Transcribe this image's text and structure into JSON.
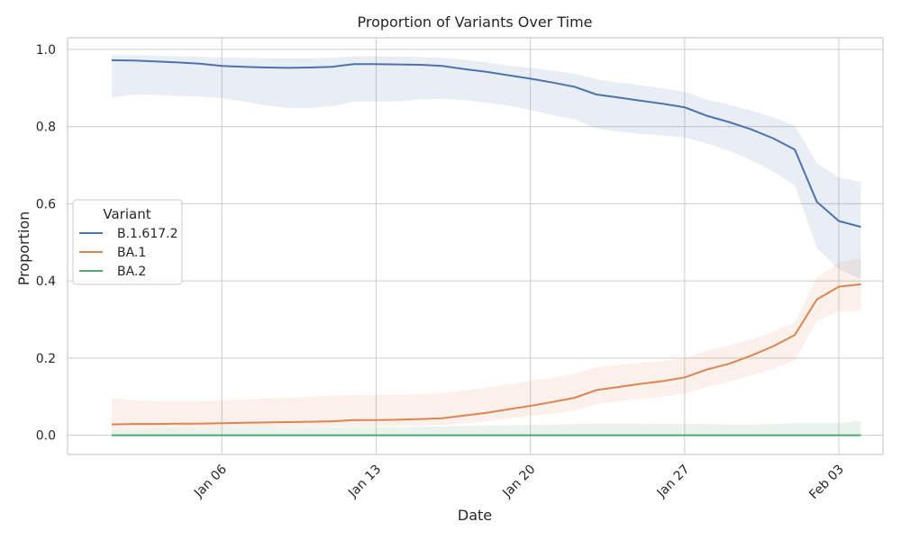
{
  "chart_data": {
    "type": "line",
    "title": "Proportion of Variants Over Time",
    "xlabel": "Date",
    "ylabel": "Proportion",
    "x_tick_labels": [
      {
        "date": "2022-01-06",
        "label": "Jan 06"
      },
      {
        "date": "2022-01-13",
        "label": "Jan 13"
      },
      {
        "date": "2022-01-20",
        "label": "Jan 20"
      },
      {
        "date": "2022-01-27",
        "label": "Jan 27"
      },
      {
        "date": "2022-02-03",
        "label": "Feb 03"
      }
    ],
    "y_tick_labels": [
      "0.0",
      "0.2",
      "0.4",
      "0.6",
      "0.8",
      "1.0"
    ],
    "x_range": [
      "2021-12-30",
      "2022-02-05"
    ],
    "ylim": [
      -0.05,
      1.03
    ],
    "grid": true,
    "legend": {
      "title": "Variant",
      "placement": "center-left"
    },
    "x": [
      "2022-01-01",
      "2022-01-02",
      "2022-01-03",
      "2022-01-04",
      "2022-01-05",
      "2022-01-06",
      "2022-01-07",
      "2022-01-08",
      "2022-01-09",
      "2022-01-10",
      "2022-01-11",
      "2022-01-12",
      "2022-01-13",
      "2022-01-14",
      "2022-01-15",
      "2022-01-16",
      "2022-01-17",
      "2022-01-18",
      "2022-01-19",
      "2022-01-20",
      "2022-01-21",
      "2022-01-22",
      "2022-01-23",
      "2022-01-24",
      "2022-01-25",
      "2022-01-26",
      "2022-01-27",
      "2022-01-28",
      "2022-01-29",
      "2022-01-30",
      "2022-01-31",
      "2022-02-01",
      "2022-02-02",
      "2022-02-03",
      "2022-02-04"
    ],
    "series": [
      {
        "name": "B.1.617.2",
        "color": "#4c72b0",
        "values": [
          0.972,
          0.971,
          0.969,
          0.966,
          0.963,
          0.957,
          0.955,
          0.953,
          0.952,
          0.953,
          0.955,
          0.962,
          0.962,
          0.961,
          0.96,
          0.957,
          0.949,
          0.942,
          0.933,
          0.924,
          0.914,
          0.903,
          0.883,
          0.875,
          0.867,
          0.859,
          0.85,
          0.828,
          0.812,
          0.793,
          0.77,
          0.74,
          0.605,
          0.555,
          0.54
        ],
        "ci_low": [
          0.875,
          0.883,
          0.882,
          0.879,
          0.878,
          0.873,
          0.865,
          0.855,
          0.848,
          0.848,
          0.852,
          0.865,
          0.865,
          0.865,
          0.87,
          0.872,
          0.868,
          0.862,
          0.854,
          0.843,
          0.83,
          0.818,
          0.795,
          0.787,
          0.781,
          0.776,
          0.772,
          0.756,
          0.738,
          0.713,
          0.684,
          0.647,
          0.485,
          0.43,
          0.405
        ],
        "ci_high": [
          0.985,
          0.985,
          0.984,
          0.982,
          0.981,
          0.979,
          0.978,
          0.977,
          0.977,
          0.977,
          0.978,
          0.982,
          0.982,
          0.981,
          0.98,
          0.978,
          0.973,
          0.966,
          0.958,
          0.952,
          0.945,
          0.937,
          0.923,
          0.914,
          0.907,
          0.899,
          0.89,
          0.87,
          0.857,
          0.842,
          0.824,
          0.802,
          0.705,
          0.668,
          0.656
        ]
      },
      {
        "name": "BA.1",
        "color": "#dd8452",
        "values": [
          0.028,
          0.029,
          0.029,
          0.03,
          0.03,
          0.031,
          0.032,
          0.033,
          0.034,
          0.035,
          0.036,
          0.039,
          0.039,
          0.04,
          0.042,
          0.044,
          0.051,
          0.058,
          0.067,
          0.076,
          0.086,
          0.097,
          0.117,
          0.125,
          0.133,
          0.14,
          0.15,
          0.17,
          0.185,
          0.206,
          0.23,
          0.26,
          0.352,
          0.385,
          0.391
        ],
        "ci_low": [
          0.014,
          0.015,
          0.015,
          0.016,
          0.017,
          0.018,
          0.018,
          0.019,
          0.02,
          0.021,
          0.022,
          0.023,
          0.023,
          0.024,
          0.025,
          0.026,
          0.03,
          0.036,
          0.043,
          0.05,
          0.056,
          0.064,
          0.08,
          0.088,
          0.095,
          0.1,
          0.108,
          0.125,
          0.138,
          0.154,
          0.172,
          0.193,
          0.295,
          0.322,
          0.322
        ],
        "ci_high": [
          0.097,
          0.09,
          0.088,
          0.087,
          0.088,
          0.091,
          0.093,
          0.095,
          0.097,
          0.1,
          0.103,
          0.104,
          0.104,
          0.105,
          0.106,
          0.109,
          0.116,
          0.123,
          0.132,
          0.14,
          0.149,
          0.159,
          0.177,
          0.182,
          0.187,
          0.192,
          0.199,
          0.219,
          0.232,
          0.248,
          0.268,
          0.292,
          0.408,
          0.448,
          0.458
        ]
      },
      {
        "name": "BA.2",
        "color": "#55a868",
        "values": [
          0.0,
          0.0,
          0.0,
          0.0,
          0.0,
          0.0,
          0.0,
          0.0,
          0.0,
          0.0,
          0.0,
          0.0,
          0.0,
          0.0,
          0.0,
          0.0,
          0.0,
          0.0,
          0.0,
          0.0,
          0.0,
          0.0,
          0.0,
          0.0,
          0.0,
          0.0,
          0.0,
          0.0,
          0.0,
          0.0,
          0.0,
          0.0,
          0.0,
          0.0,
          0.0
        ],
        "ci_low": [
          0.0,
          0.0,
          0.0,
          0.0,
          0.0,
          0.0,
          0.0,
          0.0,
          0.0,
          0.0,
          0.0,
          0.0,
          0.0,
          0.0,
          0.0,
          0.0,
          0.0,
          0.0,
          0.0,
          0.0,
          0.0,
          0.0,
          0.0,
          0.0,
          0.0,
          0.0,
          0.0,
          0.0,
          0.0,
          0.0,
          0.0,
          0.0,
          0.0,
          0.0,
          0.0
        ],
        "ci_high": [
          0.014,
          0.015,
          0.016,
          0.017,
          0.017,
          0.018,
          0.018,
          0.019,
          0.019,
          0.02,
          0.02,
          0.021,
          0.021,
          0.021,
          0.022,
          0.023,
          0.024,
          0.025,
          0.026,
          0.027,
          0.028,
          0.029,
          0.03,
          0.03,
          0.03,
          0.029,
          0.029,
          0.029,
          0.028,
          0.028,
          0.029,
          0.031,
          0.031,
          0.031,
          0.038
        ]
      }
    ]
  }
}
